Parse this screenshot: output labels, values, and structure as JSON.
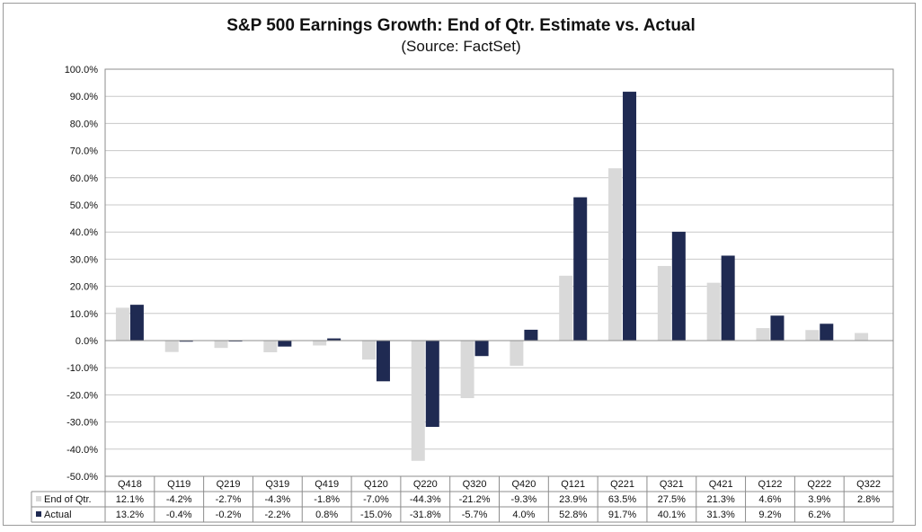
{
  "chart_data": {
    "type": "bar",
    "title": "S&P 500 Earnings Growth:  End of Qtr. Estimate vs. Actual",
    "subtitle": "(Source:  FactSet)",
    "categories": [
      "Q418",
      "Q119",
      "Q219",
      "Q319",
      "Q419",
      "Q120",
      "Q220",
      "Q320",
      "Q420",
      "Q121",
      "Q221",
      "Q321",
      "Q421",
      "Q122",
      "Q222",
      "Q322"
    ],
    "series": [
      {
        "name": "End of Qtr.",
        "color": "#d9d9d9",
        "values": [
          12.1,
          -4.2,
          -2.7,
          -4.3,
          -1.8,
          -7.0,
          -44.3,
          -21.2,
          -9.3,
          23.9,
          63.5,
          27.5,
          21.3,
          4.6,
          3.9,
          2.8
        ],
        "labels": [
          "12.1%",
          "-4.2%",
          "-2.7%",
          "-4.3%",
          "-1.8%",
          "-7.0%",
          "-44.3%",
          "-21.2%",
          "-9.3%",
          "23.9%",
          "63.5%",
          "27.5%",
          "21.3%",
          "4.6%",
          "3.9%",
          "2.8%"
        ]
      },
      {
        "name": "Actual",
        "color": "#1f2a52",
        "values": [
          13.2,
          -0.4,
          -0.2,
          -2.2,
          0.8,
          -15.0,
          -31.8,
          -5.7,
          4.0,
          52.8,
          91.7,
          40.1,
          31.3,
          9.2,
          6.2,
          null
        ],
        "labels": [
          "13.2%",
          "-0.4%",
          "-0.2%",
          "-2.2%",
          "0.8%",
          "-15.0%",
          "-31.8%",
          "-5.7%",
          "4.0%",
          "52.8%",
          "91.7%",
          "40.1%",
          "31.3%",
          "9.2%",
          "6.2%",
          ""
        ]
      }
    ],
    "ylim": [
      -50,
      100
    ],
    "yticks": [
      100,
      90,
      80,
      70,
      60,
      50,
      40,
      30,
      20,
      10,
      0,
      -10,
      -20,
      -30,
      -40,
      -50
    ],
    "ytick_labels": [
      "100.0%",
      "90.0%",
      "80.0%",
      "70.0%",
      "60.0%",
      "50.0%",
      "40.0%",
      "30.0%",
      "20.0%",
      "10.0%",
      "0.0%",
      "-10.0%",
      "-20.0%",
      "-30.0%",
      "-40.0%",
      "-50.0%"
    ],
    "grid": true,
    "legend": "data table below chart",
    "xlabel": "",
    "ylabel": ""
  }
}
